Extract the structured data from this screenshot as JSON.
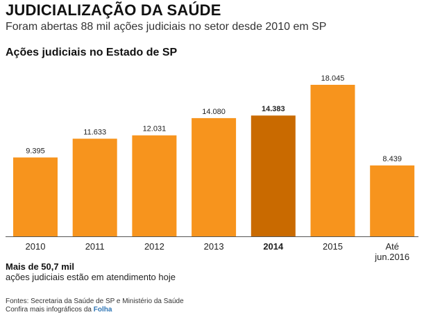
{
  "header": {
    "title": "JUDICIALIZAÇÃO DA SAÚDE",
    "subtitle": "Foram abertas 88 mil ações judiciais no setor desde 2010 em SP"
  },
  "chart_data": {
    "type": "bar",
    "title": "Ações judiciais no Estado de SP",
    "categories": [
      "2010",
      "2011",
      "2012",
      "2013",
      "2014",
      "2015",
      "Até jun.2016"
    ],
    "values": [
      9395,
      11633,
      12031,
      14080,
      14383,
      18045,
      8439
    ],
    "value_labels": [
      "9.395",
      "11.633",
      "12.031",
      "14.080",
      "14.383",
      "18.045",
      "8.439"
    ],
    "highlight_category": "2014",
    "ylim": [
      0,
      18045
    ],
    "grid": false,
    "colors": {
      "bar": "#F7941D",
      "highlight": "#C96A00",
      "baseline": "#555555"
    }
  },
  "note": {
    "title": "Mais de 50,7 mil",
    "text": "ações judiciais estão em atendimento hoje"
  },
  "footer": {
    "sources": "Fontes: Secretaria da Saúde de SP e Ministério da Saúde",
    "more_prefix": "Confira mais infográficos da",
    "brand": "Folha"
  }
}
